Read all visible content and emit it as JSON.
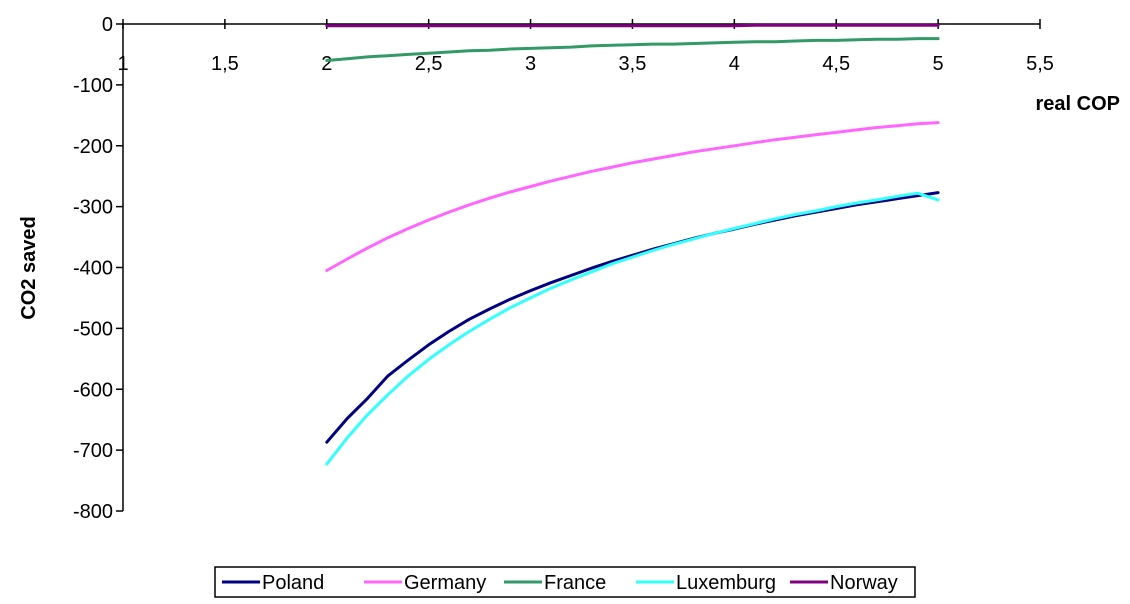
{
  "chart_data": {
    "type": "line",
    "title": "",
    "xlabel": "real COP",
    "ylabel": "CO2 saved",
    "xlim": [
      1,
      5.5
    ],
    "ylim": [
      -800,
      0
    ],
    "x_ticks": [
      1,
      1.5,
      2,
      2.5,
      3,
      3.5,
      4,
      4.5,
      5,
      5.5
    ],
    "x_tick_labels": [
      "1",
      "1,5",
      "2",
      "2,5",
      "3",
      "3,5",
      "4",
      "4,5",
      "5",
      "5,5"
    ],
    "y_ticks": [
      0,
      -100,
      -200,
      -300,
      -400,
      -500,
      -600,
      -700,
      -800
    ],
    "y_tick_labels": [
      "0",
      "-100",
      "-200",
      "-300",
      "-400",
      "-500",
      "-600",
      "-700",
      "-800"
    ],
    "grid": false,
    "legend_position": "bottom",
    "x": [
      2,
      2.1,
      2.2,
      2.3,
      2.4,
      2.5,
      2.6,
      2.7,
      2.8,
      2.9,
      3,
      3.1,
      3.2,
      3.3,
      3.4,
      3.5,
      3.6,
      3.7,
      3.8,
      3.9,
      4,
      4.1,
      4.2,
      4.3,
      4.4,
      4.5,
      4.6,
      4.7,
      4.8,
      4.9,
      5
    ],
    "series": [
      {
        "name": "Poland",
        "color": "#000080",
        "values": [
          -687,
          -648,
          -615,
          -578,
          -552,
          -527,
          -505,
          -485,
          -468,
          -452,
          -438,
          -425,
          -413,
          -401,
          -390,
          -380,
          -370,
          -361,
          -352,
          -344,
          -337,
          -329,
          -322,
          -315,
          -309,
          -303,
          -297,
          -292,
          -287,
          -282,
          -277
        ]
      },
      {
        "name": "Germany",
        "color": "#FF66FF",
        "values": [
          -405,
          -386,
          -368,
          -351,
          -336,
          -322,
          -309,
          -297,
          -286,
          -276,
          -267,
          -258,
          -250,
          -242,
          -235,
          -228,
          -222,
          -216,
          -210,
          -205,
          -200,
          -195,
          -190,
          -186,
          -182,
          -178,
          -174,
          -170,
          -167,
          -164,
          -162
        ]
      },
      {
        "name": "France",
        "color": "#339966",
        "values": [
          -60,
          -57,
          -54,
          -52,
          -50,
          -48,
          -46,
          -44,
          -43,
          -41,
          -40,
          -39,
          -38,
          -36,
          -35,
          -34,
          -33,
          -33,
          -32,
          -31,
          -30,
          -29,
          -29,
          -28,
          -27,
          -27,
          -26,
          -25,
          -25,
          -24,
          -24
        ]
      },
      {
        "name": "Luxemburg",
        "color": "#33FFFF",
        "values": [
          -723,
          -680,
          -642,
          -609,
          -578,
          -551,
          -527,
          -505,
          -485,
          -466,
          -450,
          -434,
          -420,
          -407,
          -394,
          -383,
          -372,
          -362,
          -353,
          -344,
          -336,
          -328,
          -320,
          -313,
          -307,
          -300,
          -294,
          -289,
          -283,
          -278,
          -289
        ]
      },
      {
        "name": "Norway",
        "color": "#800080",
        "values": [
          -3,
          -3,
          -3,
          -3,
          -3,
          -3,
          -3,
          -3,
          -3,
          -3,
          -3,
          -3,
          -3,
          -3,
          -3,
          -3,
          -3,
          -3,
          -3,
          -3,
          -3,
          -2,
          -2,
          -2,
          -2,
          -2,
          -2,
          -2,
          -2,
          -2,
          -2
        ]
      }
    ]
  }
}
